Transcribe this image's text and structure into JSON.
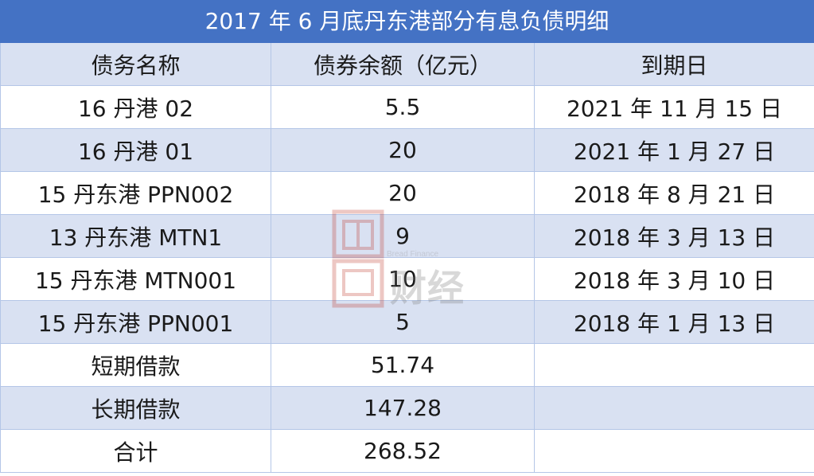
{
  "title": "2017 年 6 月底丹东港部分有息负债明细",
  "columns": [
    "债务名称",
    "债券余额（亿元）",
    "到期日"
  ],
  "rows": [
    [
      "16 丹港 02",
      "5.5",
      "2021 年 11 月 15 日"
    ],
    [
      "16 丹港 01",
      "20",
      "2021 年 1 月 27 日"
    ],
    [
      "15 丹东港 PPN002",
      "20",
      "2018 年 8 月 21 日"
    ],
    [
      "13 丹东港 MTN1",
      "9",
      "2018 年 3 月 13 日"
    ],
    [
      "15 丹东港 MTN001",
      "10",
      "2018 年 3 月 10 日"
    ],
    [
      "15 丹东港 PPN001",
      "5",
      "2018 年 1 月 13 日"
    ],
    [
      "短期借款",
      "51.74",
      ""
    ],
    [
      "长期借款",
      "147.28",
      ""
    ],
    [
      "合计",
      "268.52",
      ""
    ]
  ],
  "watermark": {
    "brand_en": "Bread Finance",
    "brand_cn": "面包财经"
  },
  "colors": {
    "title_bg": "#4472c4",
    "band": "#d9e1f2",
    "border": "#b4c6e7",
    "watermark_red": "#c0392b"
  }
}
